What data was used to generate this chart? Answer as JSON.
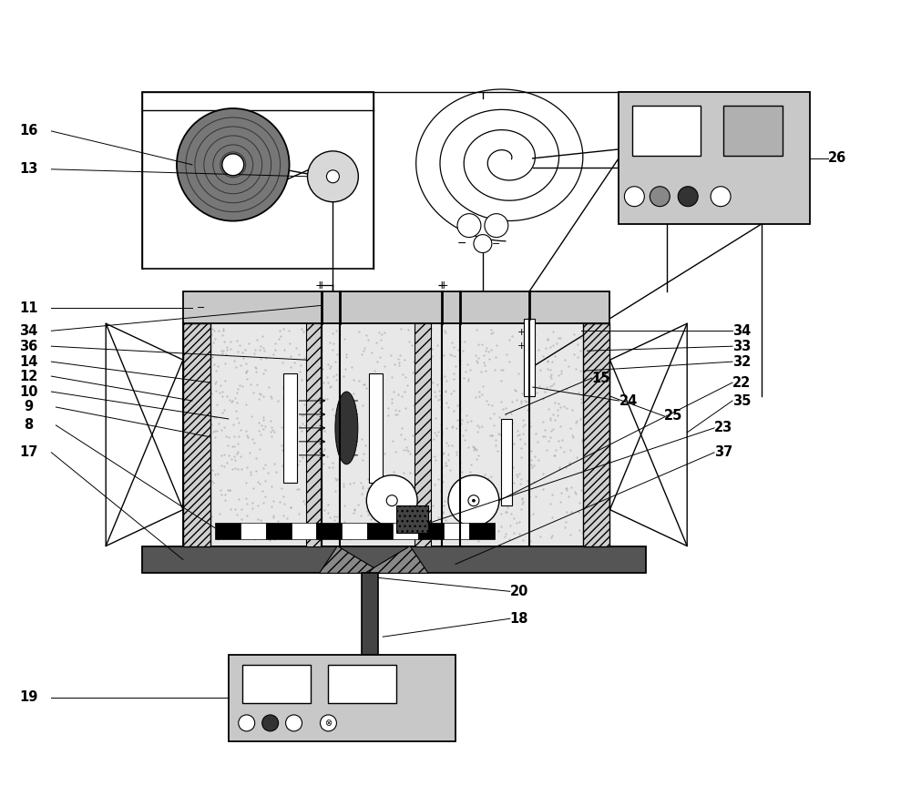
{
  "bg_color": "#ffffff",
  "line_color": "#000000",
  "gray_light": "#c8c8c8",
  "gray_medium": "#a0a0a0",
  "gray_dark": "#606060",
  "gray_darker": "#404040",
  "chamber_fill": "#e0e0e0",
  "base_fill": "#555555",
  "ctrl_fill": "#c8c8c8"
}
